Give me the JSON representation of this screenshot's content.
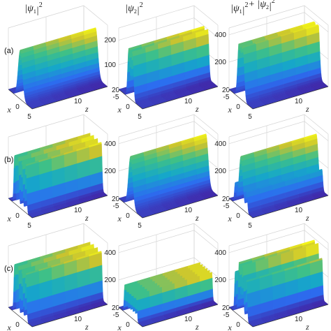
{
  "column_titles": [
    {
      "parts": [
        "|",
        "ψ",
        "1",
        "|",
        "2"
      ]
    },
    {
      "parts": [
        "|",
        "ψ",
        "2",
        "|",
        "2"
      ]
    },
    {
      "parts": [
        "|",
        "ψ",
        "1",
        "|",
        "2",
        "+ |",
        "ψ",
        "2",
        "|",
        "2"
      ]
    }
  ],
  "row_labels": [
    "(a)",
    "(b)",
    "(c)"
  ],
  "x_axis_label": "x",
  "z_axis_label": "z",
  "colormap": [
    "#3e26a8",
    "#2c6df0",
    "#16a8c8",
    "#3ec088",
    "#c8c230",
    "#f9fb15"
  ],
  "chart_data": [
    {
      "type": "surface3d",
      "panel": "a",
      "column": "|ψ1|²",
      "x_ticks": [
        0,
        5
      ],
      "z_ticks": [
        10,
        20
      ],
      "value_ticks": [],
      "zmax": 250,
      "profile": "single",
      "peaks_x": [
        0
      ],
      "peak_value": 200
    },
    {
      "type": "surface3d",
      "panel": "a",
      "column": "|ψ2|²",
      "x_ticks": [
        -5,
        0,
        5
      ],
      "z_ticks": [
        10,
        20
      ],
      "value_ticks": [
        100,
        200
      ],
      "zmax": 250,
      "profile": "double",
      "peaks_x": [
        -0.8,
        0.8
      ],
      "peak_value": 200
    },
    {
      "type": "surface3d",
      "panel": "a",
      "column": "|ψ1|²+|ψ2|²",
      "x_ticks": [
        -5,
        0,
        5
      ],
      "z_ticks": [
        10,
        20
      ],
      "value_ticks": [
        200,
        400
      ],
      "zmax": 450,
      "profile": "flat",
      "peaks_x": [
        -0.8,
        0.8
      ],
      "peak_value": 390
    },
    {
      "type": "surface3d",
      "panel": "b",
      "column": "|ψ1|²",
      "x_ticks": [
        0,
        5
      ],
      "z_ticks": [
        10,
        20
      ],
      "value_ticks": [],
      "zmax": 250,
      "profile": "four",
      "peaks_x": [
        -2.4,
        -0.8,
        0.8,
        2.4
      ],
      "peak_value": 200
    },
    {
      "type": "surface3d",
      "panel": "b",
      "column": "|ψ2|²",
      "x_ticks": [
        -5,
        0,
        5
      ],
      "z_ticks": [
        10,
        20
      ],
      "value_ticks": [
        200,
        400
      ],
      "zmax": 450,
      "profile": "single",
      "peaks_x": [
        0
      ],
      "peak_value": 380
    },
    {
      "type": "surface3d",
      "panel": "b",
      "column": "|ψ1|²+|ψ2|²",
      "x_ticks": [
        -5,
        0,
        5
      ],
      "z_ticks": [
        10,
        20
      ],
      "value_ticks": [
        200,
        400
      ],
      "zmax": 450,
      "profile": "center_side",
      "peaks_x": [
        -2.4,
        0,
        2.4
      ],
      "peak_value": 380
    },
    {
      "type": "surface3d",
      "panel": "c",
      "column": "|ψ1|²",
      "x_ticks": [
        0,
        5
      ],
      "z_ticks": [
        10,
        20
      ],
      "value_ticks": [],
      "zmax": 250,
      "profile": "four",
      "peaks_x": [
        -2.4,
        -0.8,
        0.8,
        2.4
      ],
      "peak_value": 200
    },
    {
      "type": "surface3d",
      "panel": "c",
      "column": "|ψ2|²",
      "x_ticks": [
        -5,
        0,
        5
      ],
      "z_ticks": [
        10,
        20
      ],
      "value_ticks": [
        200,
        400
      ],
      "zmax": 450,
      "profile": "multi",
      "peaks_x": [
        -2.5,
        -1.5,
        -0.5,
        0.5,
        1.5,
        2.5
      ],
      "peak_value": 200
    },
    {
      "type": "surface3d",
      "panel": "c",
      "column": "|ψ1|²+|ψ2|²",
      "x_ticks": [
        -5,
        0,
        5
      ],
      "z_ticks": [
        10,
        20
      ],
      "value_ticks": [
        200,
        400
      ],
      "zmax": 450,
      "profile": "multi_big",
      "peaks_x": [
        -2.4,
        -0.8,
        0.8,
        2.4
      ],
      "peak_value": 380
    }
  ]
}
